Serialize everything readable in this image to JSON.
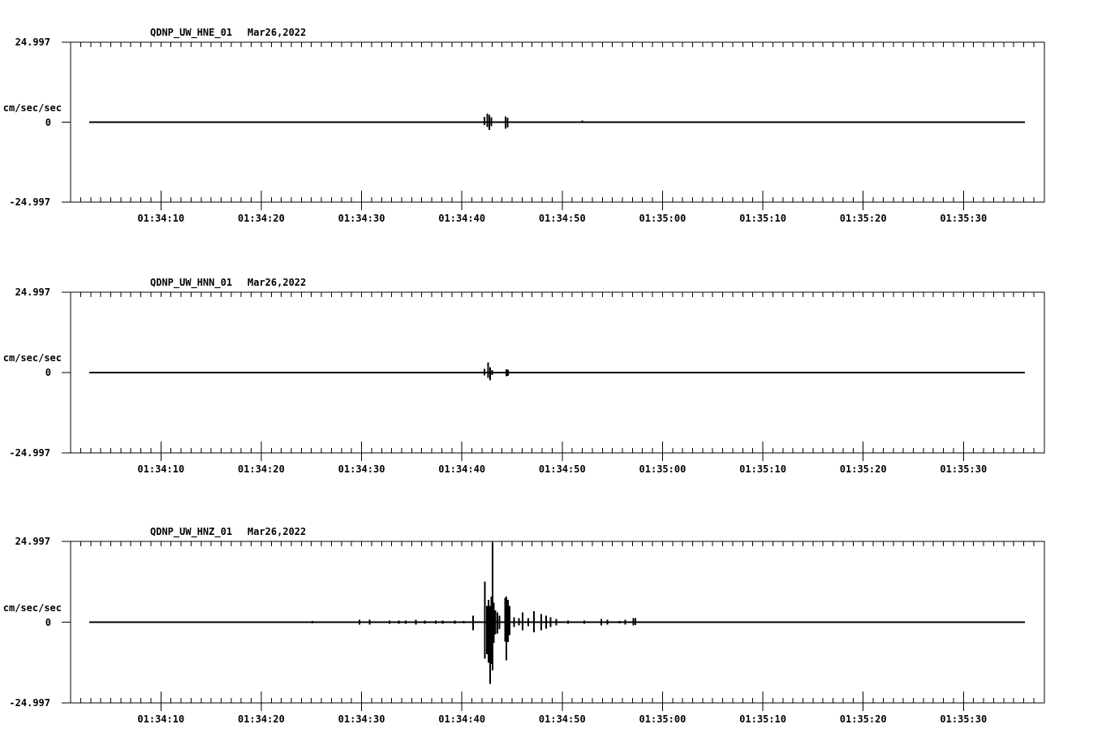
{
  "display": {
    "background": "#ffffff",
    "ink": "#000000"
  },
  "chart_data": [
    {
      "type": "line",
      "subtype": "seismogram-trace",
      "station": "QDNP_UW_HNE_01",
      "date": "Mar26,2022",
      "ylabel": "cm/sec/sec",
      "ymax_label": "24.997",
      "yzero_label": "0",
      "ymin_label": "-24.997",
      "ylim": [
        -24.997,
        24.997
      ],
      "xticklabels": [
        "01:34:10",
        "01:34:20",
        "01:34:30",
        "01:34:40",
        "01:34:50",
        "01:35:00",
        "01:35:10",
        "01:35:20",
        "01:35:30"
      ],
      "xtick_seconds": [
        10,
        20,
        30,
        40,
        50,
        60,
        70,
        80,
        90
      ],
      "xlim_seconds": [
        1,
        98
      ],
      "grid": false,
      "baseline_value": 0,
      "trace_span_seconds": [
        2.9,
        96.1
      ],
      "spikes": [
        [
          42.25,
          1.6,
          0.9
        ],
        [
          42.55,
          2.6,
          1.5
        ],
        [
          42.75,
          2.3,
          2.4
        ],
        [
          42.95,
          1.5,
          1.2
        ],
        [
          44.35,
          1.8,
          2.0
        ],
        [
          44.55,
          1.4,
          1.7
        ],
        [
          52.0,
          0.5,
          0.3
        ]
      ]
    },
    {
      "type": "line",
      "subtype": "seismogram-trace",
      "station": "QDNP_UW_HNN_01",
      "date": "Mar26,2022",
      "ylabel": "cm/sec/sec",
      "ymax_label": "24.997",
      "yzero_label": "0",
      "ymin_label": "-24.997",
      "ylim": [
        -24.997,
        24.997
      ],
      "xticklabels": [
        "01:34:10",
        "01:34:20",
        "01:34:30",
        "01:34:40",
        "01:34:50",
        "01:35:00",
        "01:35:10",
        "01:35:20",
        "01:35:30"
      ],
      "xtick_seconds": [
        10,
        20,
        30,
        40,
        50,
        60,
        70,
        80,
        90
      ],
      "xlim_seconds": [
        1,
        98
      ],
      "grid": false,
      "baseline_value": 0,
      "trace_span_seconds": [
        2.9,
        96.1
      ],
      "spikes": [
        [
          42.25,
          1.1,
          0.9
        ],
        [
          42.6,
          3.2,
          1.6
        ],
        [
          42.8,
          1.6,
          2.4
        ],
        [
          43.0,
          0.8,
          0.8
        ],
        [
          44.45,
          1.0,
          1.1
        ],
        [
          44.6,
          0.9,
          1.0
        ]
      ]
    },
    {
      "type": "line",
      "subtype": "seismogram-trace",
      "station": "QDNP_UW_HNZ_01",
      "date": "Mar26,2022",
      "ylabel": "cm/sec/sec",
      "ymax_label": "24.997",
      "yzero_label": "0",
      "ymin_label": "-24.997",
      "ylim": [
        -24.997,
        24.997
      ],
      "xticklabels": [
        "01:34:10",
        "01:34:20",
        "01:34:30",
        "01:34:40",
        "01:34:50",
        "01:35:00",
        "01:35:10",
        "01:35:20",
        "01:35:30"
      ],
      "xtick_seconds": [
        10,
        20,
        30,
        40,
        50,
        60,
        70,
        80,
        90
      ],
      "xlim_seconds": [
        1,
        98
      ],
      "grid": false,
      "baseline_value": 0,
      "trace_span_seconds": [
        2.9,
        96.1
      ],
      "spikes": [
        [
          8.5,
          0.3,
          0.3
        ],
        [
          10.3,
          0.3,
          0.3
        ],
        [
          13.1,
          0.3,
          0.3
        ],
        [
          19.9,
          0.3,
          0.3
        ],
        [
          25.1,
          0.4,
          0.4
        ],
        [
          29.8,
          0.8,
          0.8
        ],
        [
          30.8,
          0.8,
          0.8
        ],
        [
          32.8,
          0.5,
          0.5
        ],
        [
          33.7,
          0.5,
          0.5
        ],
        [
          34.4,
          0.5,
          0.5
        ],
        [
          35.4,
          0.8,
          0.8
        ],
        [
          36.3,
          0.5,
          0.5
        ],
        [
          37.4,
          0.5,
          0.5
        ],
        [
          38.1,
          0.5,
          0.5
        ],
        [
          39.3,
          0.5,
          0.5
        ],
        [
          40.2,
          0.4,
          0.4
        ],
        [
          41.1,
          2.0,
          2.5
        ],
        [
          42.3,
          12.6,
          11.4
        ],
        [
          42.5,
          5.0,
          10.0
        ],
        [
          42.65,
          7.0,
          12.6
        ],
        [
          42.8,
          5.0,
          19.2
        ],
        [
          42.95,
          8.0,
          13.0
        ],
        [
          43.05,
          24.9,
          15.0
        ],
        [
          43.2,
          6.0,
          6.5
        ],
        [
          43.35,
          3.6,
          3.8
        ],
        [
          43.55,
          3.0,
          3.5
        ],
        [
          43.75,
          2.0,
          2.2
        ],
        [
          44.3,
          7.6,
          6.0
        ],
        [
          44.45,
          8.0,
          11.9
        ],
        [
          44.6,
          7.0,
          6.2
        ],
        [
          44.75,
          5.0,
          4.0
        ],
        [
          45.2,
          1.5,
          1.5
        ],
        [
          45.7,
          1.2,
          1.0
        ],
        [
          46.05,
          3.0,
          2.5
        ],
        [
          46.6,
          1.2,
          1.2
        ],
        [
          47.2,
          3.4,
          3.2
        ],
        [
          47.9,
          2.5,
          2.5
        ],
        [
          48.4,
          2.0,
          2.0
        ],
        [
          48.85,
          1.5,
          1.5
        ],
        [
          49.4,
          1.0,
          1.0
        ],
        [
          50.6,
          0.5,
          0.5
        ],
        [
          52.2,
          0.5,
          0.5
        ],
        [
          53.9,
          1.0,
          1.0
        ],
        [
          54.5,
          0.8,
          0.8
        ],
        [
          55.7,
          0.4,
          0.4
        ],
        [
          56.3,
          0.8,
          0.8
        ],
        [
          57.1,
          1.3,
          1.0
        ],
        [
          57.3,
          1.2,
          0.9
        ]
      ]
    }
  ]
}
